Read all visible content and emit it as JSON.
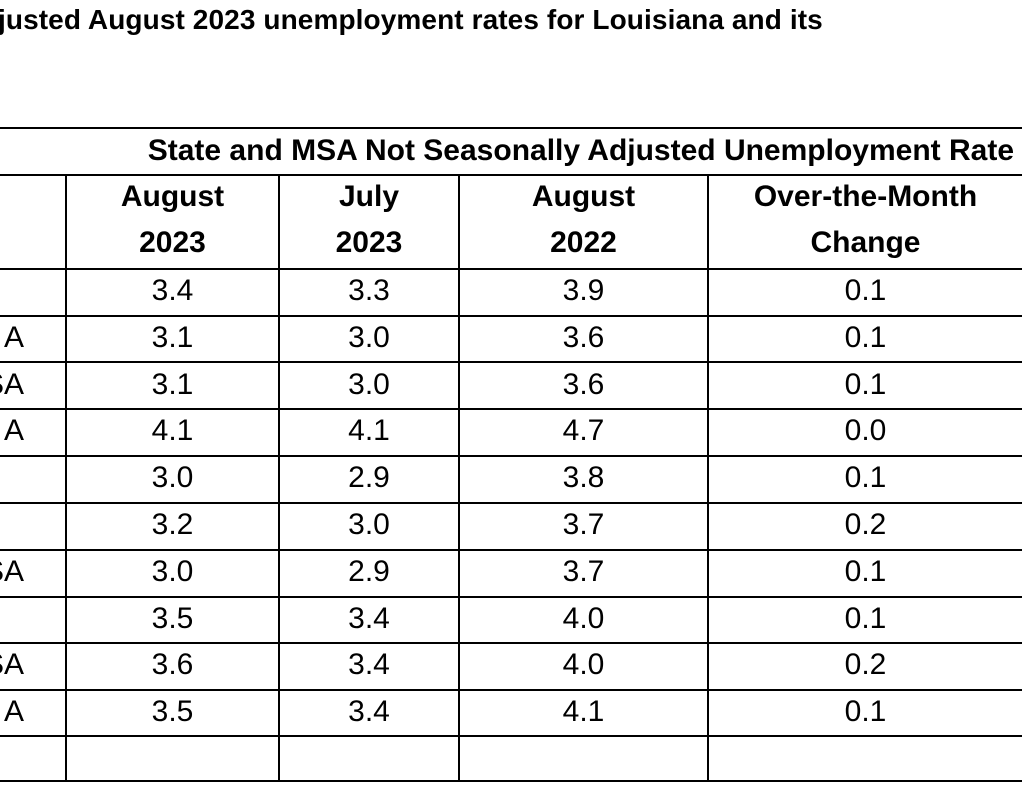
{
  "title": "justed August 2023 unemployment rates for Louisiana and its",
  "table": {
    "header_title": "State and MSA Not Seasonally Adjusted Unemployment Rate",
    "columns": [
      {
        "line1": "August",
        "line2": "2023"
      },
      {
        "line1": "July",
        "line2": "2023"
      },
      {
        "line1": "August",
        "line2": "2022"
      },
      {
        "line1": "Over-the-Month",
        "line2": "Change"
      }
    ],
    "rows": [
      {
        "label": "",
        "values": [
          "3.4",
          "3.3",
          "3.9",
          "0.1"
        ]
      },
      {
        "label": "A",
        "values": [
          "3.1",
          "3.0",
          "3.6",
          "0.1"
        ]
      },
      {
        "label": "SA",
        "values": [
          "3.1",
          "3.0",
          "3.6",
          "0.1"
        ]
      },
      {
        "label": "A",
        "values": [
          "4.1",
          "4.1",
          "4.7",
          "0.0"
        ]
      },
      {
        "label": "",
        "values": [
          "3.0",
          "2.9",
          "3.8",
          "0.1"
        ]
      },
      {
        "label": "",
        "values": [
          "3.2",
          "3.0",
          "3.7",
          "0.2"
        ]
      },
      {
        "label": "SA",
        "values": [
          "3.0",
          "2.9",
          "3.7",
          "0.1"
        ]
      },
      {
        "label": "",
        "values": [
          "3.5",
          "3.4",
          "4.0",
          "0.1"
        ]
      },
      {
        "label": "SA",
        "values": [
          "3.6",
          "3.4",
          "4.0",
          "0.2"
        ]
      },
      {
        "label": "A",
        "values": [
          "3.5",
          "3.4",
          "4.1",
          "0.1"
        ]
      },
      {
        "label": "",
        "values": [
          "",
          "",
          "",
          ""
        ]
      }
    ]
  }
}
